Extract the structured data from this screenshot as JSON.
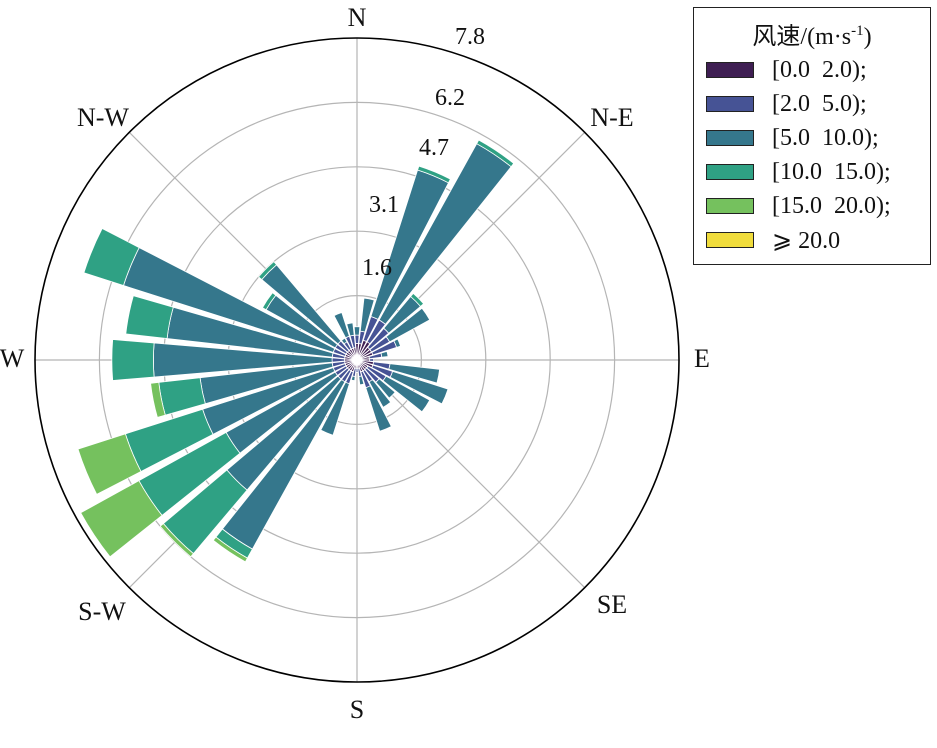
{
  "chart_data": {
    "type": "windrose",
    "title": "",
    "directions": [
      "N",
      "N-E",
      "E",
      "SE",
      "S",
      "S-W",
      "W",
      "N-W"
    ],
    "radial_ticks": [
      "1.6",
      "3.1",
      "4.7",
      "6.2",
      "7.8"
    ],
    "radial_tick_values": [
      1.55,
      3.1,
      4.65,
      6.2,
      7.75
    ],
    "rmax": 7.75,
    "legend_title_main": "风速/(m·s",
    "legend_title_sup": "-1",
    "legend_title_end": ")",
    "legend_placement": "top-right",
    "grid": true,
    "bins": [
      {
        "label": "[0.0  2.0);",
        "color": "#3e1e52"
      },
      {
        "label": "[2.0  5.0);",
        "color": "#465395"
      },
      {
        "label": "[5.0  10.0);",
        "color": "#35778c"
      },
      {
        "label": "[10.0  15.0);",
        "color": "#2fa184"
      },
      {
        "label": "[15.0  20.0);",
        "color": "#75c15e"
      },
      {
        "label": "⩾ 20.0",
        "color": "#f0dc3c"
      }
    ],
    "sectors": [
      {
        "dir": 0,
        "values": [
          0.4,
          0.2,
          0.2,
          0,
          0,
          0
        ]
      },
      {
        "dir": 11.25,
        "values": [
          0.4,
          0.3,
          0.8,
          0,
          0,
          0
        ]
      },
      {
        "dir": 22.5,
        "values": [
          0.5,
          0.6,
          3.7,
          0.1,
          0,
          0
        ]
      },
      {
        "dir": 33.75,
        "values": [
          0.5,
          0.6,
          4.85,
          0.1,
          0,
          0
        ]
      },
      {
        "dir": 45,
        "values": [
          0.4,
          0.6,
          1.0,
          0.1,
          0,
          0
        ]
      },
      {
        "dir": 56.25,
        "values": [
          0.4,
          0.5,
          1.1,
          0,
          0,
          0
        ]
      },
      {
        "dir": 67.5,
        "values": [
          0.4,
          0.6,
          0.1,
          0,
          0,
          0
        ]
      },
      {
        "dir": 78.75,
        "values": [
          0.3,
          0.3,
          0.15,
          0,
          0,
          0
        ]
      },
      {
        "dir": 90,
        "values": [
          0.3,
          0.1,
          0,
          0,
          0,
          0
        ]
      },
      {
        "dir": 101.25,
        "values": [
          0.4,
          0.4,
          1.2,
          0,
          0,
          0
        ]
      },
      {
        "dir": 112.5,
        "values": [
          0.4,
          0.5,
          1.4,
          0,
          0,
          0
        ]
      },
      {
        "dir": 123.75,
        "values": [
          0.3,
          0.5,
          1.2,
          0,
          0,
          0
        ]
      },
      {
        "dir": 135,
        "values": [
          0.3,
          0.4,
          0.5,
          0,
          0,
          0
        ]
      },
      {
        "dir": 146.25,
        "values": [
          0.3,
          0.3,
          0.7,
          0,
          0,
          0
        ]
      },
      {
        "dir": 157.5,
        "values": [
          0.3,
          0.4,
          1.1,
          0,
          0,
          0
        ]
      },
      {
        "dir": 168.75,
        "values": [
          0.2,
          0.2,
          0.2,
          0,
          0,
          0
        ]
      },
      {
        "dir": 180,
        "values": [
          0.2,
          0.1,
          0,
          0,
          0,
          0
        ]
      },
      {
        "dir": 191.25,
        "values": [
          0.2,
          0.2,
          0.1,
          0,
          0,
          0
        ]
      },
      {
        "dir": 202.5,
        "values": [
          0.3,
          0.3,
          1.3,
          0,
          0,
          0
        ]
      },
      {
        "dir": 213.75,
        "values": [
          0.3,
          0.3,
          4.6,
          0.25,
          0.1,
          0
        ]
      },
      {
        "dir": 225,
        "values": [
          0.3,
          0.3,
          3.5,
          2.0,
          0.1,
          0
        ]
      },
      {
        "dir": 236.25,
        "values": [
          0.3,
          0.3,
          3.0,
          2.4,
          1.6,
          0
        ]
      },
      {
        "dir": 247.5,
        "values": [
          0.3,
          0.3,
          3.3,
          1.95,
          1.2,
          0
        ]
      },
      {
        "dir": 258.75,
        "values": [
          0.3,
          0.3,
          3.2,
          1.0,
          0.2,
          0
        ]
      },
      {
        "dir": 270,
        "values": [
          0.3,
          0.3,
          4.3,
          1.0,
          0,
          0
        ]
      },
      {
        "dir": 281.25,
        "values": [
          0.3,
          0.3,
          4.0,
          1.0,
          0,
          0
        ]
      },
      {
        "dir": 292.5,
        "values": [
          0.3,
          0.3,
          5.3,
          1.0,
          0,
          0
        ]
      },
      {
        "dir": 303.75,
        "values": [
          0.3,
          0.3,
          1.9,
          0.1,
          0,
          0
        ]
      },
      {
        "dir": 315,
        "values": [
          0.3,
          0.3,
          2.4,
          0.1,
          0,
          0
        ]
      },
      {
        "dir": 326.25,
        "values": [
          0.3,
          0.2,
          0.1,
          0,
          0,
          0
        ]
      },
      {
        "dir": 337.5,
        "values": [
          0.3,
          0.3,
          0.6,
          0,
          0,
          0
        ]
      },
      {
        "dir": 348.75,
        "values": [
          0.3,
          0.3,
          0.3,
          0,
          0,
          0
        ]
      }
    ]
  }
}
